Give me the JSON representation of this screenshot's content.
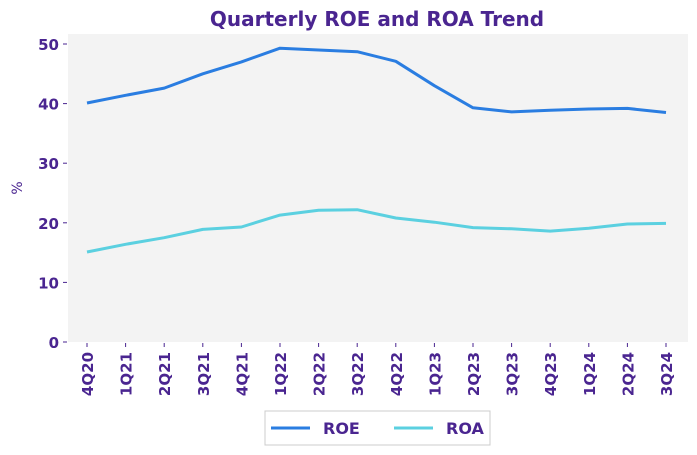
{
  "chart_data": {
    "type": "line",
    "title": "Quarterly ROE and ROA Trend",
    "xlabel": "",
    "ylabel": "%",
    "ylim": [
      0,
      50
    ],
    "yticks": [
      0,
      10,
      20,
      30,
      40,
      50
    ],
    "grid": false,
    "legend_position": "bottom-center",
    "categories": [
      "4Q20",
      "1Q21",
      "2Q21",
      "3Q21",
      "4Q21",
      "1Q22",
      "2Q22",
      "3Q22",
      "4Q22",
      "1Q23",
      "2Q23",
      "3Q23",
      "4Q23",
      "1Q24",
      "2Q24",
      "3Q24"
    ],
    "series": [
      {
        "name": "ROE",
        "color": "#2a7de1",
        "values": [
          40.1,
          41.4,
          42.6,
          45.0,
          47.0,
          49.3,
          49.0,
          48.7,
          47.1,
          43.0,
          39.3,
          38.6,
          38.9,
          39.1,
          39.2,
          38.5
        ]
      },
      {
        "name": "ROA",
        "color": "#5bd0e0",
        "values": [
          15.1,
          16.4,
          17.5,
          18.9,
          19.3,
          21.3,
          22.1,
          22.2,
          20.8,
          20.1,
          19.2,
          19.0,
          18.6,
          19.1,
          19.8,
          19.9
        ]
      }
    ]
  },
  "colors": {
    "text": "#4a2590",
    "plot_background": "#f3f3f3",
    "legend_border": "#cccccc"
  }
}
